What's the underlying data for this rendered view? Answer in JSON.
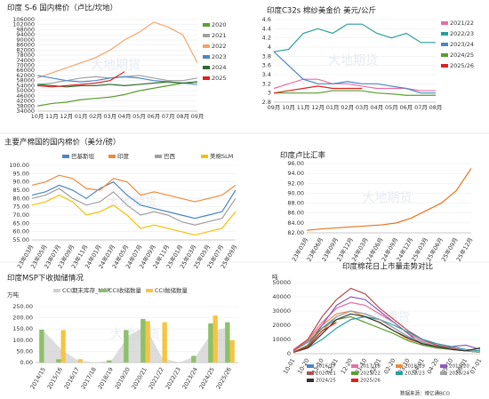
{
  "watermark": "大地期货",
  "chart_data": [
    {
      "type": "line",
      "title": "印度 S-6 国内棉价（卢比/坎地）",
      "legend": "right",
      "categories": [
        "10月",
        "11月",
        "12月",
        "01月",
        "02月",
        "03月",
        "04月",
        "05月",
        "06月",
        "07月",
        "08月",
        "09月"
      ],
      "ylim": [
        34000,
        106000
      ],
      "yticks": [
        34000,
        38000,
        42000,
        46000,
        50000,
        54000,
        58000,
        62000,
        66000,
        70000,
        74000,
        78000,
        82000,
        86000,
        90000,
        94000,
        98000,
        102000,
        106000
      ],
      "series": [
        {
          "name": "2020",
          "color": "#5a9e2f",
          "values": [
            38000,
            40000,
            41000,
            43000,
            44000,
            45000,
            47000,
            50000,
            52000,
            54000,
            56000,
            57000
          ]
        },
        {
          "name": "2021",
          "color": "#a0a0a0",
          "values": [
            55000,
            56000,
            58000,
            60000,
            61000,
            60000,
            61000,
            62000,
            60000,
            58000,
            58000,
            60000
          ]
        },
        {
          "name": "2022",
          "color": "#f4a46a",
          "values": [
            60000,
            64000,
            68000,
            72000,
            76000,
            82000,
            90000,
            96000,
            104000,
            100000,
            94000,
            72000
          ]
        },
        {
          "name": "2023",
          "color": "#4a86c8",
          "values": [
            62000,
            60000,
            58000,
            57000,
            58000,
            60000,
            61000,
            60000,
            58000,
            57000,
            56000,
            55000
          ]
        },
        {
          "name": "2024",
          "color": "#2e6b2e",
          "values": [
            55000,
            54000,
            53000,
            54000,
            54000,
            55000,
            54000,
            55000,
            56000,
            57000,
            56000,
            57000
          ]
        },
        {
          "name": "2025",
          "color": "#e02020",
          "values": [
            54000,
            53000,
            54000,
            55000,
            56000,
            58000,
            65000,
            null,
            null,
            null,
            null,
            null
          ]
        }
      ]
    },
    {
      "type": "line",
      "title": "印度C32s 棉纱美金价  美元/公斤",
      "legend": "right",
      "categories": [
        "09月",
        "10月",
        "11月",
        "12月",
        "01月",
        "02月",
        "03月",
        "04月",
        "05月",
        "06月",
        "07月",
        "08月"
      ],
      "ylim": [
        2.8,
        4.6
      ],
      "yticks": [
        2.8,
        3,
        3.2,
        3.4,
        3.6,
        3.8,
        4,
        4.2,
        4.4,
        4.6
      ],
      "series": [
        {
          "name": "2021/22",
          "color": "#e86fa0",
          "values": [
            3.1,
            3.2,
            3.3,
            3.3,
            3.2,
            3.2,
            3.15,
            3.1,
            3.1,
            3.1,
            3.05,
            3.05
          ]
        },
        {
          "name": "2022/23",
          "color": "#2a9d9d",
          "values": [
            3.9,
            3.95,
            4.3,
            4.4,
            4.3,
            4.5,
            4.5,
            4.3,
            4.2,
            4.3,
            4.1,
            4.1
          ]
        },
        {
          "name": "2023/24",
          "color": "#4a86c8",
          "values": [
            3.9,
            3.6,
            3.3,
            3.2,
            3.2,
            3.25,
            3.2,
            3.2,
            3.15,
            3.1,
            3.0,
            3.0
          ]
        },
        {
          "name": "2024/25",
          "color": "#5a9e2f",
          "values": [
            3.0,
            3.0,
            3.0,
            3.0,
            3.05,
            3.05,
            3.05,
            3.0,
            2.98,
            2.95,
            2.95,
            2.95
          ]
        },
        {
          "name": "2025/26",
          "color": "#e02020",
          "values": [
            3.0,
            3.05,
            3.1,
            3.15,
            3.1,
            3.1,
            3.1,
            null,
            null,
            null,
            null,
            null
          ]
        }
      ]
    },
    {
      "type": "line",
      "title": "主要产棉国的国内棉价（美分/磅）",
      "legend": "top",
      "rotate": true,
      "categories": [
        "23年03月",
        "23年05月",
        "23年07月",
        "23年09月",
        "23年11月",
        "24年01月",
        "24年03月",
        "24年05月",
        "24年07月",
        "24年09月",
        "24年11月",
        "25年01月",
        "25年03月",
        "25年05月",
        "25年07月",
        "25年09月"
      ],
      "ylim": [
        55,
        100
      ],
      "yticks": [
        {
          "value": 55,
          "label": "55.00"
        },
        {
          "value": 60,
          "label": "60.00"
        },
        {
          "value": 65,
          "label": "65.00"
        },
        {
          "value": 70,
          "label": "70.00"
        },
        {
          "value": 75,
          "label": "75.00"
        },
        {
          "value": 80,
          "label": "80.00"
        },
        {
          "value": 85,
          "label": "85.00"
        },
        {
          "value": 90,
          "label": "90.00"
        },
        {
          "value": 95,
          "label": "95.00"
        },
        {
          "value": 100,
          "label": "100.00"
        }
      ],
      "series": [
        {
          "name": "巴基斯坦",
          "color": "#4a86c8",
          "values": [
            82,
            84,
            88,
            85,
            80,
            86,
            90,
            82,
            76,
            74,
            72,
            70,
            68,
            70,
            72,
            85
          ]
        },
        {
          "name": "印度",
          "color": "#f08a3c",
          "values": [
            88,
            90,
            94,
            92,
            86,
            85,
            92,
            90,
            82,
            84,
            82,
            80,
            78,
            80,
            82,
            88
          ]
        },
        {
          "name": "巴西",
          "color": "#a0a0a0",
          "values": [
            80,
            82,
            86,
            80,
            76,
            78,
            84,
            76,
            70,
            72,
            70,
            66,
            64,
            66,
            68,
            80
          ]
        },
        {
          "name": "美棉SLM",
          "color": "#f5c000",
          "values": [
            76,
            78,
            82,
            78,
            70,
            72,
            76,
            70,
            62,
            64,
            62,
            60,
            58,
            60,
            62,
            72
          ]
        }
      ]
    },
    {
      "type": "line",
      "title": "印度卢比汇率",
      "rotate": true,
      "categories": [
        "23年03月",
        "23年06月",
        "23年09月",
        "23年12月",
        "24年03月",
        "24年06月",
        "24年09月",
        "24年12月",
        "25年03月",
        "25年06月",
        "25年09月",
        "25年12月"
      ],
      "ylim": [
        82,
        96
      ],
      "yticks": [
        {
          "value": 82,
          "label": "82.00"
        },
        {
          "value": 84,
          "label": "84.00"
        },
        {
          "value": 86,
          "label": "86.00"
        },
        {
          "value": 88,
          "label": "88.00"
        },
        {
          "value": 90,
          "label": "90.00"
        },
        {
          "value": 92,
          "label": "92.00"
        },
        {
          "value": 94,
          "label": "94.00"
        },
        {
          "value": 96,
          "label": "96.00"
        }
      ],
      "series": [
        {
          "color": "#e8741c",
          "values": [
            82.5,
            82.8,
            83.0,
            83.2,
            83.4,
            83.6,
            84.0,
            85.0,
            86.5,
            88.0,
            90.5,
            95.0
          ]
        }
      ]
    },
    {
      "type": "bar",
      "title": "印度MSP下收抛储情况",
      "y_label": "万吨",
      "legend": "top",
      "rotate": true,
      "categories": [
        "2014/15",
        "2015/16",
        "2016/17",
        "2017/18",
        "2018/19",
        "2019/20",
        "2020/21",
        "2021/22",
        "2022/23",
        "2023/24",
        "2024/25",
        "2025/26"
      ],
      "ylim": [
        0,
        250
      ],
      "yticks": [
        {
          "value": 0,
          "label": "0.00"
        },
        {
          "value": 50,
          "label": "50.00"
        },
        {
          "value": 100,
          "label": "100.00"
        },
        {
          "value": 150,
          "label": "150.00"
        },
        {
          "value": 200,
          "label": "200.00"
        },
        {
          "value": 250,
          "label": "250.00"
        }
      ],
      "series": [
        {
          "name": "CCI期末库存_MSP",
          "color": "#d0d0d0",
          "mark": "area",
          "values": [
            140,
            60,
            10,
            0,
            10,
            120,
            160,
            20,
            0,
            30,
            140,
            160
          ]
        },
        {
          "name": "CCI收储数量",
          "color": "#8cc06a",
          "values": [
            147,
            15,
            0,
            0,
            10,
            145,
            195,
            0,
            0,
            30,
            175,
            180
          ]
        },
        {
          "name": "CCI抛储数量",
          "color": "#f5c542",
          "values": [
            0,
            145,
            15,
            0,
            0,
            0,
            185,
            180,
            0,
            0,
            210,
            100
          ]
        }
      ]
    },
    {
      "type": "line",
      "title": "印度棉花日上市量走势对比",
      "y_label": "吨",
      "legend": "bottom",
      "rotate": true,
      "source": "数据来源：博亿通BCO",
      "categories": [
        "10-01",
        "10-20",
        "11-10",
        "12-01",
        "12-20",
        "01-10",
        "02-01",
        "02-20",
        "03-10",
        "04-01",
        "04-20",
        "05-10",
        "06-01",
        "07-01"
      ],
      "ylim": [
        0,
        50000
      ],
      "yticks": [
        0,
        10000,
        20000,
        30000,
        40000,
        50000
      ],
      "series": [
        {
          "name": "2016/17",
          "color": "#4a86c8",
          "values": [
            2000,
            8000,
            18000,
            26000,
            30000,
            28000,
            24000,
            18000,
            12000,
            8000,
            5000,
            3000,
            2000,
            1000
          ]
        },
        {
          "name": "2017/18",
          "color": "#e86fa0",
          "values": [
            3000,
            10000,
            22000,
            32000,
            36000,
            34000,
            28000,
            22000,
            14000,
            9000,
            6000,
            4000,
            2000,
            1000
          ]
        },
        {
          "name": "2018/19",
          "color": "#f08a3c",
          "values": [
            2000,
            9000,
            20000,
            28000,
            30000,
            26000,
            22000,
            16000,
            10000,
            7000,
            4000,
            3000,
            2000,
            1000
          ]
        },
        {
          "name": "2019/20",
          "color": "#8e5cb8",
          "values": [
            1000,
            6000,
            20000,
            34000,
            40000,
            38000,
            30000,
            22000,
            14000,
            6000,
            4000,
            5000,
            6000,
            3000
          ]
        },
        {
          "name": "2020/21",
          "color": "#b05050",
          "values": [
            2000,
            10000,
            26000,
            38000,
            46000,
            42000,
            32000,
            24000,
            16000,
            10000,
            6000,
            4000,
            2000,
            1000
          ]
        },
        {
          "name": "2021/22",
          "color": "#5a9e2f",
          "values": [
            1000,
            6000,
            18000,
            24000,
            26000,
            22000,
            18000,
            14000,
            9000,
            6000,
            4000,
            3000,
            2000,
            1000
          ]
        },
        {
          "name": "2022/23",
          "color": "#2a9d9d",
          "values": [
            1000,
            4000,
            10000,
            18000,
            24000,
            26000,
            24000,
            20000,
            15000,
            10000,
            7000,
            5000,
            3000,
            2000
          ]
        },
        {
          "name": "2023/24",
          "color": "#a0a0a0",
          "values": [
            1000,
            5000,
            16000,
            26000,
            30000,
            28000,
            24000,
            18000,
            12000,
            8000,
            5000,
            3000,
            2000,
            1000
          ]
        },
        {
          "name": "2024/25",
          "color": "#333333",
          "values": [
            1000,
            4000,
            14000,
            24000,
            28000,
            26000,
            22000,
            16000,
            11000,
            7000,
            5000,
            3000,
            2000,
            4000
          ]
        },
        {
          "name": "2025/26",
          "color": "#e02020",
          "values": [
            1000,
            5000,
            16000,
            22000,
            null,
            null,
            null,
            null,
            null,
            null,
            null,
            null,
            null,
            null
          ]
        }
      ]
    }
  ]
}
